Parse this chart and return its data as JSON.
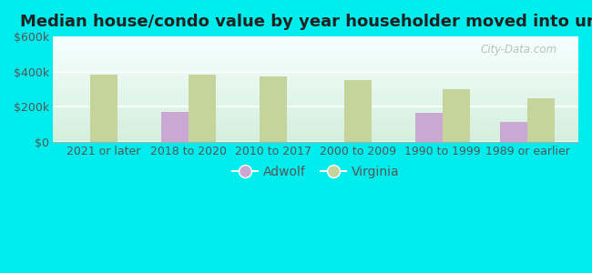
{
  "title": "Median house/condo value by year householder moved into unit",
  "categories": [
    "2021 or later",
    "2018 to 2020",
    "2010 to 2017",
    "2000 to 2009",
    "1990 to 1999",
    "1989 or earlier"
  ],
  "adwolf_values": [
    null,
    170000,
    null,
    null,
    163000,
    115000
  ],
  "virginia_values": [
    385000,
    380000,
    370000,
    350000,
    298000,
    245000
  ],
  "adwolf_color": "#c9a8d4",
  "virginia_color": "#c5d49a",
  "background_outer": "#00eded",
  "background_top": "#f5fffe",
  "background_bottom": "#d4eedc",
  "ylim": [
    0,
    600000
  ],
  "yticks": [
    0,
    200000,
    400000,
    600000
  ],
  "ytick_labels": [
    "$0",
    "$200k",
    "$400k",
    "$600k"
  ],
  "bar_width": 0.32,
  "title_fontsize": 13,
  "tick_fontsize": 9,
  "legend_labels": [
    "Adwolf",
    "Virginia"
  ],
  "watermark": "City-Data.com"
}
